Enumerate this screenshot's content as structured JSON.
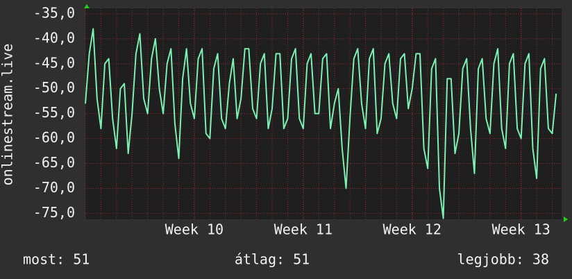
{
  "chart_data": {
    "type": "line",
    "y_label": "onlinestream.live",
    "color": "#7cf0b2",
    "grid": true,
    "xlim": [
      0,
      30.6
    ],
    "xticks": [
      {
        "value": 7,
        "label": "Week 10"
      },
      {
        "value": 14,
        "label": "Week 11"
      },
      {
        "value": 21,
        "label": "Week 12"
      },
      {
        "value": 28,
        "label": "Week 13"
      }
    ],
    "ylim": [
      -76.2,
      -33.9
    ],
    "yticks": [
      {
        "value": -75,
        "label": "-75,0"
      },
      {
        "value": -70,
        "label": "-70,0"
      },
      {
        "value": -65,
        "label": "-65,0"
      },
      {
        "value": -60,
        "label": "-60,0"
      },
      {
        "value": -55,
        "label": "-55,0"
      },
      {
        "value": -50,
        "label": "-50,0"
      },
      {
        "value": -45,
        "label": "-45,0"
      },
      {
        "value": -40,
        "label": "-40,0"
      },
      {
        "value": -35,
        "label": "-35,0"
      }
    ],
    "x": [
      0,
      0.25,
      0.5,
      0.75,
      1,
      1.25,
      1.5,
      1.75,
      2,
      2.25,
      2.5,
      2.75,
      3,
      3.25,
      3.5,
      3.75,
      4,
      4.25,
      4.5,
      4.75,
      5,
      5.25,
      5.5,
      5.75,
      6,
      6.25,
      6.5,
      6.75,
      7,
      7.25,
      7.5,
      7.75,
      8,
      8.25,
      8.5,
      8.75,
      9,
      9.25,
      9.5,
      9.75,
      10,
      10.25,
      10.5,
      10.75,
      11,
      11.25,
      11.5,
      11.75,
      12,
      12.25,
      12.5,
      12.75,
      13,
      13.25,
      13.5,
      13.75,
      14,
      14.25,
      14.5,
      14.75,
      15,
      15.25,
      15.5,
      15.75,
      16,
      16.25,
      16.5,
      16.75,
      17,
      17.25,
      17.5,
      17.75,
      18,
      18.25,
      18.5,
      18.75,
      19,
      19.25,
      19.5,
      19.75,
      20,
      20.25,
      20.5,
      20.75,
      21,
      21.25,
      21.5,
      21.75,
      22,
      22.25,
      22.5,
      22.75,
      23,
      23.25,
      23.5,
      23.75,
      24,
      24.25,
      24.5,
      24.75,
      25,
      25.25,
      25.5,
      25.75,
      26,
      26.25,
      26.5,
      26.75,
      27,
      27.25,
      27.5,
      27.75,
      28,
      28.25,
      28.5,
      28.75,
      29,
      29.25,
      29.5,
      29.75,
      30,
      30.25
    ],
    "values": [
      -53,
      -43,
      -38,
      -52,
      -58,
      -45,
      -44,
      -56,
      -62,
      -50,
      -49,
      -63,
      -55,
      -43,
      -39,
      -52,
      -55,
      -44,
      -40,
      -50,
      -55,
      -45,
      -42,
      -57,
      -64,
      -48,
      -42,
      -53,
      -56,
      -44,
      -42,
      -59,
      -60,
      -46,
      -43,
      -56,
      -58,
      -49,
      -44,
      -56,
      -52,
      -42,
      -42,
      -54,
      -56,
      -45,
      -43,
      -58,
      -54,
      -43,
      -43,
      -58,
      -56,
      -44,
      -42,
      -56,
      -58,
      -45,
      -43,
      -55,
      -55,
      -44,
      -43,
      -58,
      -53,
      -50,
      -62,
      -70,
      -56,
      -44,
      -42,
      -53,
      -58,
      -44,
      -42,
      -59,
      -56,
      -45,
      -43,
      -53,
      -56,
      -44,
      -43,
      -54,
      -50,
      -43,
      -43,
      -62,
      -66,
      -46,
      -44,
      -70,
      -76,
      -48,
      -48,
      -63,
      -59,
      -46,
      -44,
      -58,
      -67,
      -46,
      -44,
      -56,
      -59,
      -45,
      -42,
      -58,
      -62,
      -45,
      -43,
      -58,
      -60,
      -45,
      -43,
      -62,
      -68,
      -46,
      -44,
      -58,
      -59,
      -51
    ],
    "stats": [
      "most: 51",
      "átlag: 51",
      "legjobb: 38"
    ]
  }
}
